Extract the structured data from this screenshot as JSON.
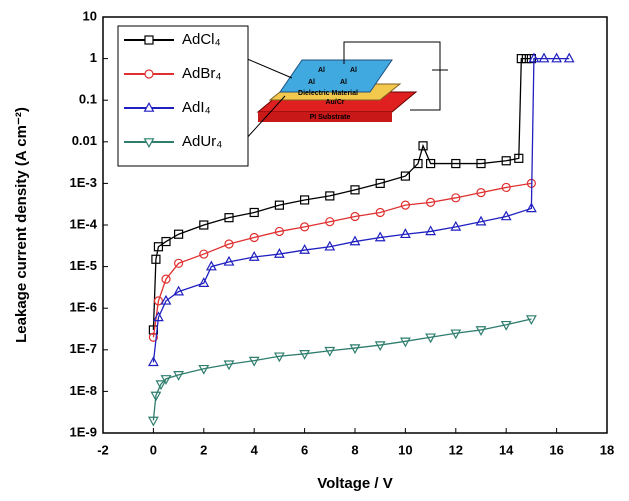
{
  "chart_data": {
    "type": "line",
    "log_y": true,
    "grid": false,
    "legend": "upper left",
    "xlabel": "Voltage / V",
    "ylabel": "Leakage current density (A cm⁻²)",
    "xlim": [
      -2,
      18
    ],
    "xticks": [
      -2,
      0,
      2,
      4,
      6,
      8,
      10,
      12,
      14,
      16,
      18
    ],
    "ylim": [
      1e-09,
      10
    ],
    "yticks": [
      {
        "value": 1e-09,
        "label": "1E-9"
      },
      {
        "value": 1e-08,
        "label": "1E-8"
      },
      {
        "value": 1e-07,
        "label": "1E-7"
      },
      {
        "value": 1e-06,
        "label": "1E-6"
      },
      {
        "value": 1e-05,
        "label": "1E-5"
      },
      {
        "value": 0.0001,
        "label": "1E-4"
      },
      {
        "value": 0.001,
        "label": "1E-3"
      },
      0.01,
      0.1,
      1,
      10
    ],
    "inset_labels": [
      "Al",
      "Al",
      "Al",
      "Al",
      "Dielectric Material",
      "Au/Cr",
      "PI Substrate"
    ],
    "series": [
      {
        "name": "AdCl₄",
        "color": "#000000",
        "marker": "square",
        "x": [
          0,
          0.1,
          0.2,
          0.5,
          1,
          2,
          3,
          4,
          5,
          6,
          7,
          8,
          9,
          10,
          10.5,
          10.7,
          11,
          12,
          13,
          14,
          14.5,
          14.6,
          14.8,
          15
        ],
        "values": [
          3e-07,
          1.5e-05,
          3e-05,
          4e-05,
          6e-05,
          0.0001,
          0.00015,
          0.0002,
          0.0003,
          0.0004,
          0.0005,
          0.0007,
          0.001,
          0.0015,
          0.003,
          0.008,
          0.003,
          0.003,
          0.003,
          0.0035,
          0.004,
          1,
          1,
          1
        ]
      },
      {
        "name": "AdBr₄",
        "color": "#e03030",
        "marker": "circle",
        "x": [
          0,
          0.2,
          0.5,
          1,
          2,
          3,
          4,
          5,
          6,
          7,
          8,
          9,
          10,
          11,
          12,
          13,
          14,
          15
        ],
        "values": [
          2e-07,
          1.5e-06,
          5e-06,
          1.2e-05,
          2e-05,
          3.5e-05,
          5e-05,
          7e-05,
          9e-05,
          0.00012,
          0.00016,
          0.0002,
          0.0003,
          0.00035,
          0.00045,
          0.0006,
          0.0008,
          0.001
        ]
      },
      {
        "name": "AdI₄",
        "color": "#2020c0",
        "marker": "triangle-up",
        "x": [
          0,
          0.2,
          0.5,
          1,
          2,
          2.3,
          3,
          4,
          5,
          6,
          7,
          8,
          9,
          10,
          11,
          12,
          13,
          14,
          15,
          15.1,
          15.5,
          16,
          16.5
        ],
        "values": [
          5e-08,
          6e-07,
          1.5e-06,
          2.5e-06,
          4e-06,
          1e-05,
          1.3e-05,
          1.7e-05,
          2e-05,
          2.5e-05,
          3e-05,
          4e-05,
          5e-05,
          6e-05,
          7e-05,
          9e-05,
          0.00012,
          0.00016,
          0.00025,
          1,
          1,
          1,
          1
        ]
      },
      {
        "name": "AdUr₄",
        "color": "#2e7d6e",
        "marker": "triangle-down",
        "x": [
          0,
          0.1,
          0.3,
          0.5,
          1,
          2,
          3,
          4,
          5,
          6,
          7,
          8,
          9,
          10,
          11,
          12,
          13,
          14,
          15
        ],
        "values": [
          2e-09,
          8e-09,
          1.5e-08,
          2e-08,
          2.5e-08,
          3.5e-08,
          4.5e-08,
          5.5e-08,
          7e-08,
          8e-08,
          9.5e-08,
          1.1e-07,
          1.3e-07,
          1.6e-07,
          2e-07,
          2.5e-07,
          3e-07,
          4e-07,
          5.5e-07
        ]
      }
    ]
  }
}
